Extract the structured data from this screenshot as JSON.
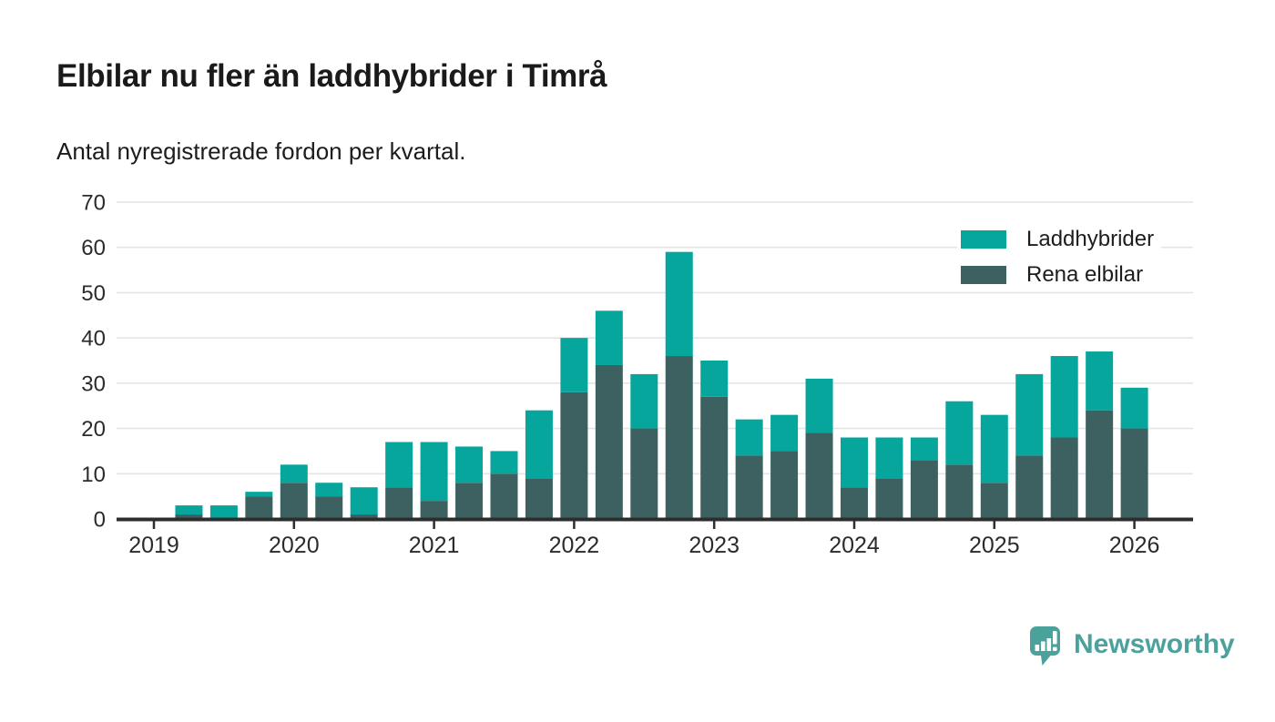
{
  "page": {
    "title": "Elbilar nu fler än laddhybrider i Timrå",
    "subtitle": "Antal nyregistrerade fordon per kvartal."
  },
  "legend": {
    "items": [
      {
        "label": "Laddhybrider",
        "color": "#06a69d"
      },
      {
        "label": "Rena elbilar",
        "color": "#3d6161"
      }
    ]
  },
  "branding": {
    "logo_text": "Newsworthy",
    "logo_color": "#4ba19b",
    "logo_icon": "bar-chart-speech-bubble"
  },
  "chart_data": {
    "type": "bar",
    "stacked": true,
    "title": "Elbilar nu fler än laddhybrider i Timrå",
    "subtitle": "Antal nyregistrerade fordon per kvartal.",
    "x": [
      "2019Q1",
      "2019Q2",
      "2019Q3",
      "2019Q4",
      "2020Q1",
      "2020Q2",
      "2020Q3",
      "2020Q4",
      "2021Q1",
      "2021Q2",
      "2021Q3",
      "2021Q4",
      "2022Q1",
      "2022Q2",
      "2022Q3",
      "2022Q4",
      "2023Q1",
      "2023Q2",
      "2023Q3",
      "2023Q4",
      "2024Q1",
      "2024Q2",
      "2024Q3",
      "2024Q4",
      "2025Q1",
      "2025Q2",
      "2025Q3",
      "2025Q4",
      "2026Q1"
    ],
    "series": [
      {
        "name": "Rena elbilar",
        "stack_order": "bottom",
        "color": "#3d6161",
        "values": [
          0,
          1,
          0,
          5,
          8,
          5,
          1,
          7,
          4,
          8,
          10,
          9,
          28,
          34,
          20,
          36,
          27,
          14,
          15,
          19,
          7,
          9,
          13,
          12,
          8,
          14,
          18,
          24,
          20
        ]
      },
      {
        "name": "Laddhybrider",
        "stack_order": "top",
        "color": "#06a69d",
        "values": [
          0,
          2,
          3,
          1,
          4,
          3,
          6,
          10,
          13,
          8,
          5,
          15,
          12,
          12,
          12,
          23,
          8,
          8,
          8,
          12,
          11,
          9,
          5,
          14,
          15,
          18,
          18,
          13,
          9
        ]
      }
    ],
    "totals": [
      0,
      3,
      3,
      6,
      12,
      8,
      7,
      17,
      17,
      16,
      15,
      24,
      40,
      46,
      32,
      59,
      35,
      22,
      23,
      31,
      18,
      18,
      18,
      26,
      23,
      32,
      36,
      37,
      29
    ],
    "year_ticks": [
      "2019",
      "2020",
      "2021",
      "2022",
      "2023",
      "2024",
      "2025",
      "2026"
    ],
    "xlabel": "",
    "ylabel": "",
    "ylim": [
      0,
      70
    ],
    "yticks": [
      0,
      10,
      20,
      30,
      40,
      50,
      60,
      70
    ],
    "grid": true,
    "legend_position": "top-right"
  }
}
